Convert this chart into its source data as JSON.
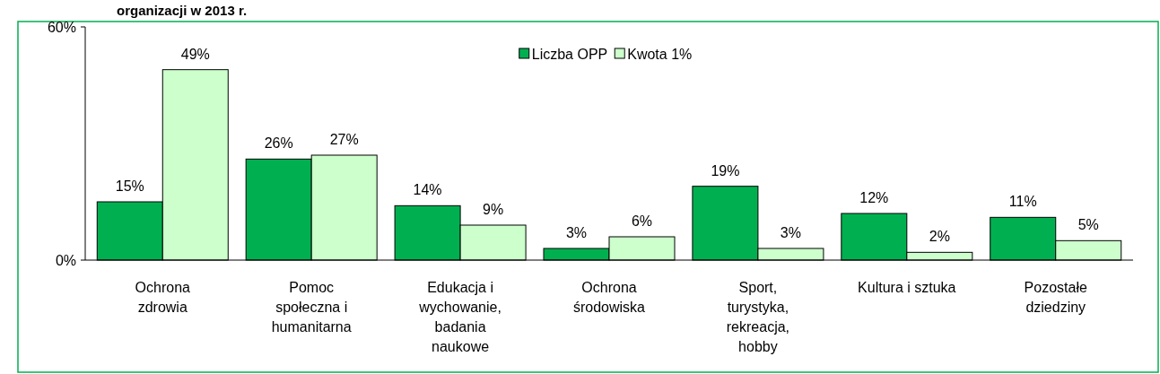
{
  "chart_data": {
    "type": "bar",
    "title": "organizacji w 2013 r.",
    "categories": [
      "Ochrona zdrowia",
      "Pomoc społeczna i humanitarna",
      "Edukacja i wychowanie, badania naukowe",
      "Ochrona środowiska",
      "Sport, turystyka, rekreacja, hobby",
      "Kultura i sztuka",
      "Pozostałe dziedziny"
    ],
    "series": [
      {
        "name": "Liczba OPP",
        "color": "#00b050",
        "values": [
          15,
          26,
          14,
          3,
          19,
          12,
          11
        ],
        "value_labels": [
          "15%",
          "26%",
          "14%",
          "3%",
          "19%",
          "12%",
          "11%"
        ]
      },
      {
        "name": "Kwota 1%",
        "color": "#ccffcc",
        "values": [
          49,
          27,
          9,
          6,
          3,
          2,
          5
        ],
        "value_labels": [
          "49%",
          "27%",
          "9%",
          "6%",
          "3%",
          "2%",
          "5%"
        ]
      }
    ],
    "ylim": [
      0,
      60
    ],
    "yticks": [
      {
        "value": 0,
        "label": "0%"
      },
      {
        "value": 60,
        "label": "60%"
      }
    ],
    "legend": "top",
    "grid": false
  }
}
